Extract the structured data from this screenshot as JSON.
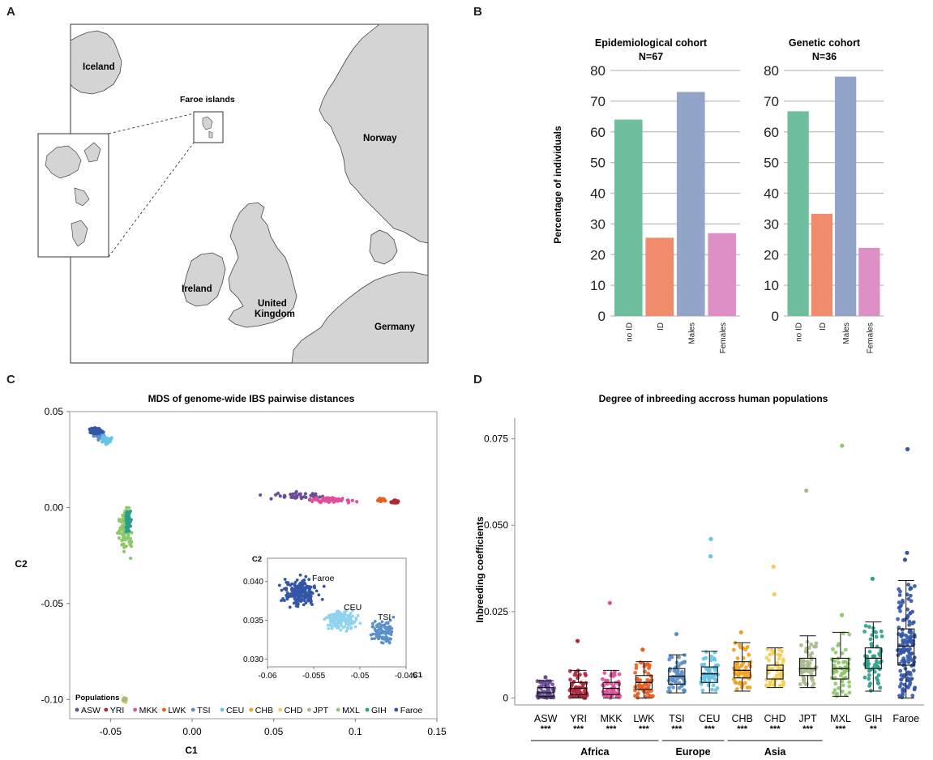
{
  "panel_letters": [
    "A",
    "B",
    "C",
    "D"
  ],
  "map": {
    "labels": {
      "iceland": "Iceland",
      "faroe": "Faroe islands",
      "norway": "Norway",
      "ireland": "Ireland",
      "uk_line1": "United",
      "uk_line2": "Kingdom",
      "germany": "Germany"
    },
    "colors": {
      "sea": "#ffffff",
      "land": "#d4d4d4",
      "coast": "#444444"
    }
  },
  "cohorts": {
    "ylabel": "Percentage of individuals",
    "categories": [
      "no ID",
      "ID",
      "Males",
      "Females"
    ],
    "colors": [
      "#6fbf9f",
      "#ef8c6c",
      "#92a4c8",
      "#dd8fc6"
    ],
    "ylim": [
      0,
      80
    ],
    "yticks": [
      0,
      10,
      20,
      30,
      40,
      50,
      60,
      70,
      80
    ],
    "charts": [
      {
        "title": "Epidemiological cohort",
        "subtitle": "N=67",
        "values": [
          64,
          25.5,
          73,
          27
        ]
      },
      {
        "title": "Genetic cohort",
        "subtitle": "N=36",
        "values": [
          66.7,
          33.3,
          78,
          22.2
        ]
      }
    ]
  },
  "chart_data": [
    {
      "type": "bar",
      "title": "Epidemiological cohort",
      "subtitle": "N=67",
      "categories": [
        "no ID",
        "ID",
        "Males",
        "Females"
      ],
      "values": [
        64,
        25.5,
        73,
        27
      ],
      "ylabel": "Percentage of individuals",
      "ylim": [
        0,
        80
      ],
      "grid": true
    },
    {
      "type": "bar",
      "title": "Genetic cohort",
      "subtitle": "N=36",
      "categories": [
        "no ID",
        "ID",
        "Males",
        "Females"
      ],
      "values": [
        66.7,
        33.3,
        78,
        22.2
      ],
      "ylabel": "Percentage of individuals",
      "ylim": [
        0,
        80
      ],
      "grid": true
    },
    {
      "type": "scatter",
      "title": "MDS of genome-wide IBS pairwise distances",
      "xlabel": "C1",
      "ylabel": "C2",
      "xlim": [
        -0.075,
        0.15
      ],
      "ylim": [
        -0.11,
        0.05
      ],
      "xticks": [
        -0.05,
        0.0,
        0.05,
        0.1,
        0.15
      ],
      "xtick_labels": [
        "-0.05",
        "0.00",
        "0.05",
        "0.1",
        "0.15"
      ],
      "yticks": [
        0.05,
        0.0,
        -0.05,
        -0.1
      ],
      "ytick_labels": [
        "0.05",
        "0.00",
        "-0.05",
        "-0.10"
      ],
      "legend_title": "Populations",
      "legend_position": "bottom",
      "clusters": [
        {
          "name": "ASW",
          "color": "#6a4c9c",
          "center": [
            0.065,
            0.006
          ],
          "spread": [
            0.015,
            0.002
          ],
          "count": 40
        },
        {
          "name": "YRI",
          "color": "#b0263a",
          "center": [
            0.124,
            0.003
          ],
          "spread": [
            0.002,
            0.0007
          ],
          "count": 60
        },
        {
          "name": "MKK",
          "color": "#e0509a",
          "center": [
            0.085,
            0.004
          ],
          "spread": [
            0.012,
            0.0012
          ],
          "count": 70
        },
        {
          "name": "LWK",
          "color": "#e8601c",
          "center": [
            0.116,
            0.004
          ],
          "spread": [
            0.002,
            0.0007
          ],
          "count": 60
        },
        {
          "name": "TSI",
          "color": "#5a8fc8",
          "center": [
            -0.057,
            0.038
          ],
          "spread": [
            0.003,
            0.002
          ],
          "count": 40
        },
        {
          "name": "CEU",
          "color": "#66c3e6",
          "center": [
            -0.053,
            0.035
          ],
          "spread": [
            0.003,
            0.0018
          ],
          "count": 50
        },
        {
          "name": "CHB",
          "color": "#f0a020",
          "center": [
            -0.0415,
            -0.1
          ],
          "spread": [
            0.0009,
            0.0008
          ],
          "count": 30
        },
        {
          "name": "CHD",
          "color": "#f2cf5a",
          "center": [
            -0.0415,
            -0.1005
          ],
          "spread": [
            0.0009,
            0.0008
          ],
          "count": 30
        },
        {
          "name": "JPT",
          "color": "#a8b888",
          "center": [
            -0.0412,
            -0.1
          ],
          "spread": [
            0.0008,
            0.0008
          ],
          "count": 25
        },
        {
          "name": "MXL",
          "color": "#8ec76a",
          "center": [
            -0.041,
            -0.012
          ],
          "spread": [
            0.0035,
            0.01
          ],
          "count": 80
        },
        {
          "name": "GIH",
          "color": "#2a9f8a",
          "center": [
            -0.039,
            -0.008
          ],
          "spread": [
            0.0015,
            0.005
          ],
          "count": 50
        },
        {
          "name": "Faroe",
          "color": "#3456a8",
          "center": [
            -0.059,
            0.04
          ],
          "spread": [
            0.003,
            0.0012
          ],
          "count": 110
        }
      ],
      "inset": {
        "xlabel": "C1",
        "ylabel": "C2",
        "xlim": [
          -0.06,
          -0.045
        ],
        "ylim": [
          0.029,
          0.043
        ],
        "xticks": [
          -0.06,
          -0.055,
          -0.05,
          -0.045
        ],
        "xtick_labels": [
          "-0.06",
          "-0.055",
          "-0.05",
          "-0.045"
        ],
        "yticks": [
          0.04,
          0.035,
          0.03
        ],
        "ytick_labels": [
          "0.040",
          "0.035",
          "0.030"
        ],
        "annotations": [
          "Faroe",
          "CEU",
          "TSI"
        ],
        "clusters": [
          {
            "name": "Faroe",
            "color": "#3456a8",
            "center": [
              -0.0565,
              0.0385
            ],
            "spread": [
              0.0017,
              0.0015
            ],
            "count": 230
          },
          {
            "name": "CEU",
            "color": "#8fd3ee",
            "center": [
              -0.052,
              0.035
            ],
            "spread": [
              0.0015,
              0.0012
            ],
            "count": 140
          },
          {
            "name": "TSI",
            "color": "#5a8fc8",
            "center": [
              -0.0475,
              0.0335
            ],
            "spread": [
              0.0012,
              0.0013
            ],
            "count": 90
          }
        ]
      }
    },
    {
      "type": "box",
      "title": "Degree of inbreeding accross human populations",
      "ylabel": "Inbreeding coefficients",
      "ylim": [
        -0.002,
        0.081
      ],
      "yticks": [
        0,
        0.025,
        0.05,
        0.075
      ],
      "ytick_labels": [
        "0",
        "0.025",
        "0.050",
        "0.075"
      ],
      "categories": [
        "ASW",
        "YRI",
        "MKK",
        "LWK",
        "TSI",
        "CEU",
        "CHB",
        "CHD",
        "JPT",
        "MXL",
        "GIH",
        "Faroe"
      ],
      "colors": [
        "#6a4c9c",
        "#b0263a",
        "#e0509a",
        "#e8601c",
        "#5a8fc8",
        "#66c3e6",
        "#f0a020",
        "#f2cf5a",
        "#a8b888",
        "#8ec76a",
        "#2a9f8a",
        "#3456a8"
      ],
      "boxes": [
        {
          "min": 0,
          "q1": 0.0005,
          "median": 0.0015,
          "q3": 0.003,
          "max": 0.005,
          "outliers": [
            0.006
          ]
        },
        {
          "min": 0,
          "q1": 0.001,
          "median": 0.0028,
          "q3": 0.0045,
          "max": 0.008,
          "outliers": [
            0.0165
          ]
        },
        {
          "min": 0,
          "q1": 0.001,
          "median": 0.0028,
          "q3": 0.0045,
          "max": 0.008,
          "outliers": [
            0.0275
          ]
        },
        {
          "min": 0,
          "q1": 0.0025,
          "median": 0.0045,
          "q3": 0.0065,
          "max": 0.0105,
          "outliers": [
            0.014
          ]
        },
        {
          "min": 0.0015,
          "q1": 0.004,
          "median": 0.0063,
          "q3": 0.0085,
          "max": 0.0125,
          "outliers": [
            0.0185
          ]
        },
        {
          "min": 0.0015,
          "q1": 0.0045,
          "median": 0.007,
          "q3": 0.009,
          "max": 0.0135,
          "outliers": [
            0.041,
            0.046
          ]
        },
        {
          "min": 0.002,
          "q1": 0.0058,
          "median": 0.008,
          "q3": 0.0105,
          "max": 0.016,
          "outliers": [
            0.019
          ]
        },
        {
          "min": 0.003,
          "q1": 0.0055,
          "median": 0.008,
          "q3": 0.0095,
          "max": 0.0145,
          "outliers": [
            0.03,
            0.038
          ]
        },
        {
          "min": 0.003,
          "q1": 0.0065,
          "median": 0.0085,
          "q3": 0.0115,
          "max": 0.018,
          "outliers": [
            0.06
          ]
        },
        {
          "min": 0.0005,
          "q1": 0.0055,
          "median": 0.0085,
          "q3": 0.0115,
          "max": 0.019,
          "outliers": [
            0.024,
            0.073
          ]
        },
        {
          "min": 0.002,
          "q1": 0.0085,
          "median": 0.0115,
          "q3": 0.0145,
          "max": 0.022,
          "outliers": [
            0.0345
          ]
        },
        {
          "min": 0,
          "q1": 0.0095,
          "median": 0.015,
          "q3": 0.02,
          "max": 0.034,
          "outliers": [
            0.04,
            0.042,
            0.072
          ]
        }
      ],
      "significance": [
        "***",
        "***",
        "***",
        "***",
        "***",
        "***",
        "***",
        "***",
        "***",
        "***",
        "**",
        ""
      ],
      "groups": [
        {
          "label": "Africa",
          "from": 0,
          "to": 3
        },
        {
          "label": "Europe",
          "from": 4,
          "to": 5
        },
        {
          "label": "Asia",
          "from": 6,
          "to": 8
        }
      ]
    }
  ]
}
